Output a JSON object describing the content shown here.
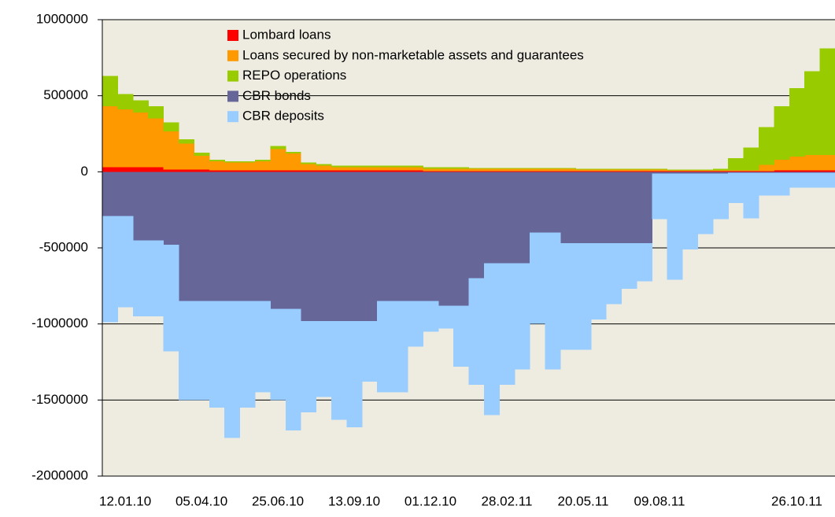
{
  "chart_data": {
    "type": "stacked-area",
    "categories": [
      null,
      "12.01.10",
      null,
      null,
      null,
      null,
      "05.04.10",
      null,
      null,
      null,
      null,
      "25.06.10",
      null,
      null,
      null,
      null,
      "13.09.10",
      null,
      null,
      null,
      null,
      "01.12.10",
      null,
      null,
      null,
      null,
      "28.02.11",
      null,
      null,
      null,
      null,
      "20.05.11",
      null,
      null,
      null,
      null,
      "09.08.11",
      null,
      null,
      null,
      null,
      null,
      null,
      null,
      null,
      "26.10.11",
      null,
      null
    ],
    "series": [
      {
        "name": "Lombard loans",
        "color": "#ff0000",
        "values": [
          30000,
          30000,
          30000,
          30000,
          15000,
          15000,
          15000,
          10000,
          10000,
          10000,
          10000,
          10000,
          10000,
          10000,
          10000,
          10000,
          10000,
          10000,
          10000,
          10000,
          10000,
          5000,
          5000,
          5000,
          5000,
          5000,
          5000,
          5000,
          5000,
          5000,
          5000,
          5000,
          5000,
          5000,
          5000,
          5000,
          5000,
          5000,
          5000,
          5000,
          5000,
          5000,
          5000,
          5000,
          10000,
          10000,
          10000,
          10000
        ]
      },
      {
        "name": "Loans secured by non-marketable assets and guarantees",
        "color": "#ff9900",
        "values": [
          400000,
          380000,
          360000,
          320000,
          250000,
          170000,
          90000,
          60000,
          50000,
          50000,
          60000,
          140000,
          110000,
          40000,
          30000,
          20000,
          20000,
          20000,
          20000,
          20000,
          20000,
          15000,
          15000,
          15000,
          15000,
          15000,
          15000,
          15000,
          15000,
          15000,
          15000,
          10000,
          10000,
          10000,
          10000,
          10000,
          10000,
          5000,
          5000,
          5000,
          5000,
          5000,
          5000,
          40000,
          70000,
          90000,
          100000,
          100000
        ]
      },
      {
        "name": "REPO operations",
        "color": "#99cc00",
        "values": [
          200000,
          100000,
          80000,
          80000,
          60000,
          30000,
          20000,
          10000,
          10000,
          10000,
          10000,
          20000,
          10000,
          10000,
          10000,
          10000,
          10000,
          10000,
          10000,
          10000,
          10000,
          10000,
          10000,
          10000,
          5000,
          5000,
          5000,
          5000,
          5000,
          5000,
          5000,
          5000,
          5000,
          5000,
          5000,
          5000,
          5000,
          5000,
          5000,
          5000,
          10000,
          80000,
          150000,
          250000,
          350000,
          450000,
          550000,
          700000
        ]
      },
      {
        "name": "CBR bonds",
        "color": "#666699",
        "values": [
          -290000,
          -290000,
          -450000,
          -450000,
          -480000,
          -850000,
          -850000,
          -850000,
          -850000,
          -850000,
          -850000,
          -900000,
          -900000,
          -980000,
          -980000,
          -980000,
          -980000,
          -980000,
          -850000,
          -850000,
          -850000,
          -850000,
          -880000,
          -880000,
          -700000,
          -600000,
          -600000,
          -600000,
          -400000,
          -400000,
          -470000,
          -470000,
          -470000,
          -470000,
          -470000,
          -470000,
          -10000,
          -10000,
          -10000,
          -10000,
          -10000,
          -5000,
          -5000,
          -5000,
          -5000,
          -5000,
          -5000,
          -5000
        ]
      },
      {
        "name": "CBR deposits",
        "color": "#99ccff",
        "values": [
          -700000,
          -600000,
          -500000,
          -500000,
          -700000,
          -650000,
          -650000,
          -700000,
          -900000,
          -700000,
          -600000,
          -600000,
          -800000,
          -600000,
          -500000,
          -650000,
          -700000,
          -400000,
          -600000,
          -600000,
          -300000,
          -200000,
          -150000,
          -400000,
          -700000,
          -1000000,
          -800000,
          -700000,
          -600000,
          -900000,
          -700000,
          -700000,
          -500000,
          -400000,
          -300000,
          -250000,
          -300000,
          -700000,
          -500000,
          -400000,
          -300000,
          -200000,
          -300000,
          -150000,
          -150000,
          -100000,
          -100000,
          -100000
        ]
      }
    ],
    "ylim": [
      -2000000,
      1000000
    ],
    "yticks": [
      -2000000,
      -1500000,
      -1000000,
      -500000,
      0,
      500000,
      1000000
    ],
    "grid": true,
    "legend": "top",
    "background": "#eeece1"
  }
}
